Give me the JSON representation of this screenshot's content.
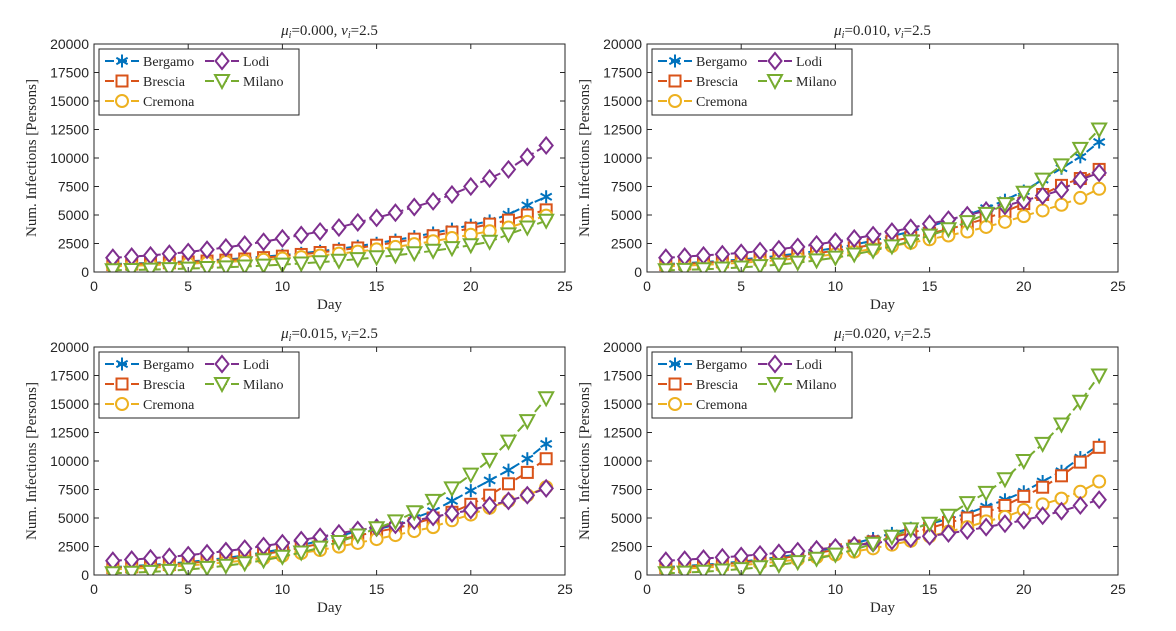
{
  "chart_data": [
    {
      "type": "line",
      "title": {
        "mu": "0.000",
        "nu": "2.5"
      },
      "xlabel": "Day",
      "ylabel": "Num. Infections [Persons]",
      "xlim": [
        0,
        25
      ],
      "ylim": [
        0,
        20000
      ],
      "xticks": [
        0,
        5,
        10,
        15,
        20,
        25
      ],
      "yticks": [
        0,
        2500,
        5000,
        7500,
        10000,
        12500,
        15000,
        17500,
        20000
      ],
      "legend": "top-left",
      "x": [
        1,
        2,
        3,
        4,
        5,
        6,
        7,
        8,
        9,
        10,
        11,
        12,
        13,
        14,
        15,
        16,
        17,
        18,
        19,
        20,
        21,
        22,
        23,
        24
      ],
      "series": [
        {
          "name": "Bergamo",
          "values": [
            700,
            750,
            800,
            870,
            940,
            1020,
            1110,
            1220,
            1340,
            1480,
            1640,
            1820,
            2030,
            2260,
            2520,
            2800,
            3100,
            3420,
            3760,
            4110,
            4480,
            5050,
            5850,
            6600
          ]
        },
        {
          "name": "Brescia",
          "values": [
            650,
            700,
            750,
            810,
            880,
            960,
            1040,
            1140,
            1260,
            1390,
            1540,
            1710,
            1900,
            2110,
            2350,
            2600,
            2880,
            3180,
            3500,
            3840,
            4200,
            4550,
            5000,
            5450
          ]
        },
        {
          "name": "Cremona",
          "values": [
            500,
            550,
            600,
            660,
            730,
            800,
            880,
            970,
            1070,
            1180,
            1310,
            1450,
            1610,
            1790,
            1990,
            2200,
            2440,
            2700,
            2980,
            3270,
            3580,
            3900,
            4400,
            4950
          ]
        },
        {
          "name": "Lodi",
          "values": [
            1250,
            1350,
            1450,
            1600,
            1750,
            1950,
            2150,
            2400,
            2650,
            2950,
            3250,
            3550,
            3900,
            4350,
            4750,
            5200,
            5700,
            6200,
            6800,
            7500,
            8200,
            9000,
            10100,
            11100
          ]
        },
        {
          "name": "Milano",
          "values": [
            150,
            180,
            210,
            250,
            300,
            350,
            410,
            480,
            560,
            650,
            750,
            860,
            990,
            1130,
            1290,
            1460,
            1650,
            1860,
            2090,
            2350,
            2650,
            3300,
            3900,
            4500
          ]
        }
      ]
    },
    {
      "type": "line",
      "title": {
        "mu": "0.010",
        "nu": "2.5"
      },
      "xlabel": "Day",
      "ylabel": "Num. Infections [Persons]",
      "xlim": [
        0,
        25
      ],
      "ylim": [
        0,
        20000
      ],
      "xticks": [
        0,
        5,
        10,
        15,
        20,
        25
      ],
      "yticks": [
        0,
        2500,
        5000,
        7500,
        10000,
        12500,
        15000,
        17500,
        20000
      ],
      "legend": "top-left",
      "x": [
        1,
        2,
        3,
        4,
        5,
        6,
        7,
        8,
        9,
        10,
        11,
        12,
        13,
        14,
        15,
        16,
        17,
        18,
        19,
        20,
        21,
        22,
        23,
        24
      ],
      "series": [
        {
          "name": "Bergamo",
          "values": [
            700,
            780,
            870,
            980,
            1100,
            1250,
            1420,
            1620,
            1850,
            2110,
            2400,
            2750,
            3150,
            3550,
            4000,
            4500,
            5000,
            5600,
            6300,
            7100,
            8100,
            9100,
            10100,
            11400
          ]
        },
        {
          "name": "Brescia",
          "values": [
            650,
            720,
            800,
            900,
            1010,
            1140,
            1290,
            1460,
            1650,
            1870,
            2120,
            2400,
            2700,
            3040,
            3400,
            3750,
            4200,
            4700,
            5300,
            6000,
            6800,
            7600,
            8200,
            9000
          ]
        },
        {
          "name": "Cremona",
          "values": [
            500,
            560,
            630,
            710,
            810,
            920,
            1050,
            1200,
            1370,
            1560,
            1780,
            2020,
            2280,
            2560,
            2870,
            3200,
            3550,
            3950,
            4400,
            4900,
            5400,
            5900,
            6500,
            7300
          ]
        },
        {
          "name": "Lodi",
          "values": [
            1250,
            1350,
            1450,
            1560,
            1680,
            1830,
            2000,
            2200,
            2420,
            2670,
            2940,
            3230,
            3540,
            3870,
            4220,
            4590,
            4980,
            5380,
            5800,
            6250,
            6700,
            7200,
            8100,
            8700
          ]
        },
        {
          "name": "Milano",
          "values": [
            150,
            190,
            240,
            310,
            400,
            510,
            650,
            820,
            1020,
            1260,
            1540,
            1870,
            2250,
            2690,
            3190,
            3750,
            4380,
            5100,
            5950,
            6950,
            8100,
            9350,
            10800,
            12500
          ]
        }
      ]
    },
    {
      "type": "line",
      "title": {
        "mu": "0.015",
        "nu": "2.5"
      },
      "xlabel": "Day",
      "ylabel": "Num. Infections [Persons]",
      "xlim": [
        0,
        25
      ],
      "ylim": [
        0,
        20000
      ],
      "xticks": [
        0,
        5,
        10,
        15,
        20,
        25
      ],
      "yticks": [
        0,
        2500,
        5000,
        7500,
        10000,
        12500,
        15000,
        17500,
        20000
      ],
      "legend": "top-left",
      "x": [
        1,
        2,
        3,
        4,
        5,
        6,
        7,
        8,
        9,
        10,
        11,
        12,
        13,
        14,
        15,
        16,
        17,
        18,
        19,
        20,
        21,
        22,
        23,
        24
      ],
      "series": [
        {
          "name": "Bergamo",
          "values": [
            700,
            780,
            880,
            1000,
            1140,
            1310,
            1500,
            1720,
            1980,
            2280,
            2620,
            3000,
            3400,
            3850,
            4000,
            4400,
            5000,
            5600,
            6500,
            7400,
            8300,
            9200,
            10200,
            11500
          ]
        },
        {
          "name": "Brescia",
          "values": [
            650,
            720,
            810,
            920,
            1050,
            1200,
            1380,
            1580,
            1820,
            2090,
            2400,
            2750,
            3100,
            3450,
            3800,
            4100,
            4500,
            5000,
            5500,
            6200,
            7000,
            8000,
            9000,
            10200
          ]
        },
        {
          "name": "Cremona",
          "values": [
            500,
            560,
            640,
            730,
            840,
            960,
            1110,
            1270,
            1460,
            1680,
            1920,
            2190,
            2490,
            2810,
            3150,
            3500,
            3850,
            4200,
            4800,
            5300,
            5900,
            6500,
            7000,
            7700
          ]
        },
        {
          "name": "Lodi",
          "values": [
            1250,
            1350,
            1460,
            1590,
            1740,
            1910,
            2100,
            2310,
            2540,
            2790,
            3060,
            3350,
            3650,
            3950,
            4150,
            4400,
            4750,
            5100,
            5400,
            5700,
            6100,
            6500,
            7000,
            7600
          ]
        },
        {
          "name": "Milano",
          "values": [
            150,
            200,
            270,
            360,
            480,
            630,
            810,
            1030,
            1290,
            1600,
            1970,
            2400,
            2900,
            3470,
            4100,
            4700,
            5500,
            6500,
            7600,
            8800,
            10100,
            11700,
            13500,
            15500
          ]
        }
      ]
    },
    {
      "type": "line",
      "title": {
        "mu": "0.020",
        "nu": "2.5"
      },
      "xlabel": "Day",
      "ylabel": "Num. Infections [Persons]",
      "xlim": [
        0,
        25
      ],
      "ylim": [
        0,
        20000
      ],
      "xticks": [
        0,
        5,
        10,
        15,
        20,
        25
      ],
      "yticks": [
        0,
        2500,
        5000,
        7500,
        10000,
        12500,
        15000,
        17500,
        20000
      ],
      "legend": "top-left",
      "x": [
        1,
        2,
        3,
        4,
        5,
        6,
        7,
        8,
        9,
        10,
        11,
        12,
        13,
        14,
        15,
        16,
        17,
        18,
        19,
        20,
        21,
        22,
        23,
        24
      ],
      "series": [
        {
          "name": "Bergamo",
          "values": [
            700,
            790,
            900,
            1030,
            1180,
            1360,
            1570,
            1810,
            2090,
            2410,
            2780,
            3200,
            3650,
            4100,
            4500,
            4900,
            5400,
            6000,
            6600,
            7300,
            8200,
            9100,
            10300,
            11400
          ]
        },
        {
          "name": "Brescia",
          "values": [
            650,
            730,
            830,
            950,
            1090,
            1260,
            1450,
            1670,
            1920,
            2210,
            2540,
            2910,
            3300,
            3700,
            4100,
            4600,
            5000,
            5500,
            6100,
            6900,
            7700,
            8700,
            9900,
            11200
          ]
        },
        {
          "name": "Cremona",
          "values": [
            500,
            570,
            650,
            750,
            870,
            1010,
            1170,
            1350,
            1560,
            1790,
            2050,
            2340,
            2660,
            3000,
            3400,
            3800,
            4200,
            4700,
            5100,
            5700,
            6200,
            6700,
            7300,
            8200
          ]
        },
        {
          "name": "Lodi",
          "values": [
            1250,
            1340,
            1440,
            1550,
            1670,
            1800,
            1940,
            2090,
            2250,
            2420,
            2600,
            2790,
            2990,
            3200,
            3400,
            3650,
            3900,
            4200,
            4500,
            4800,
            5200,
            5600,
            6100,
            6600
          ]
        },
        {
          "name": "Milano",
          "values": [
            150,
            210,
            290,
            390,
            520,
            680,
            880,
            1130,
            1430,
            1790,
            2220,
            2740,
            3350,
            4000,
            4500,
            5200,
            6300,
            7200,
            8400,
            10000,
            11500,
            13200,
            15200,
            17500
          ]
        }
      ]
    }
  ],
  "colors": {
    "Bergamo": "#0072BD",
    "Brescia": "#D95319",
    "Cremona": "#EDB120",
    "Lodi": "#7E2F8E",
    "Milano": "#77AC30"
  },
  "markers": {
    "Bergamo": "asterisk",
    "Brescia": "square",
    "Cremona": "circle",
    "Lodi": "diamond",
    "Milano": "triangle-down"
  }
}
